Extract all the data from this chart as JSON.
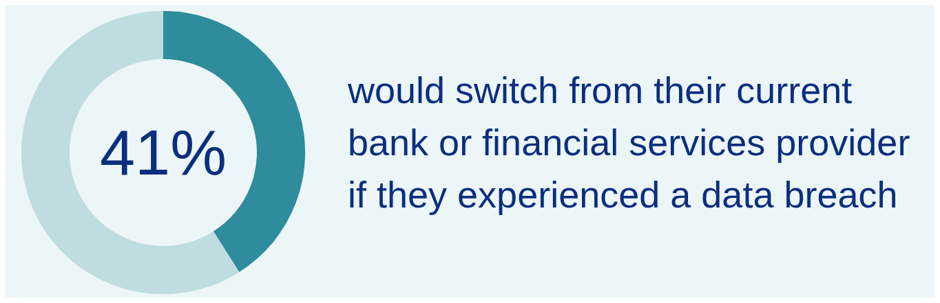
{
  "chart_data": {
    "type": "donut",
    "title": "would switch from their current bank or financial services provider if they experienced a data breach",
    "categories": [
      null,
      null
    ],
    "values": [
      41,
      59
    ],
    "colors": [
      "#2e8c9c",
      "#bfdde1"
    ],
    "value_labels": [
      "41%",
      null
    ]
  }
}
